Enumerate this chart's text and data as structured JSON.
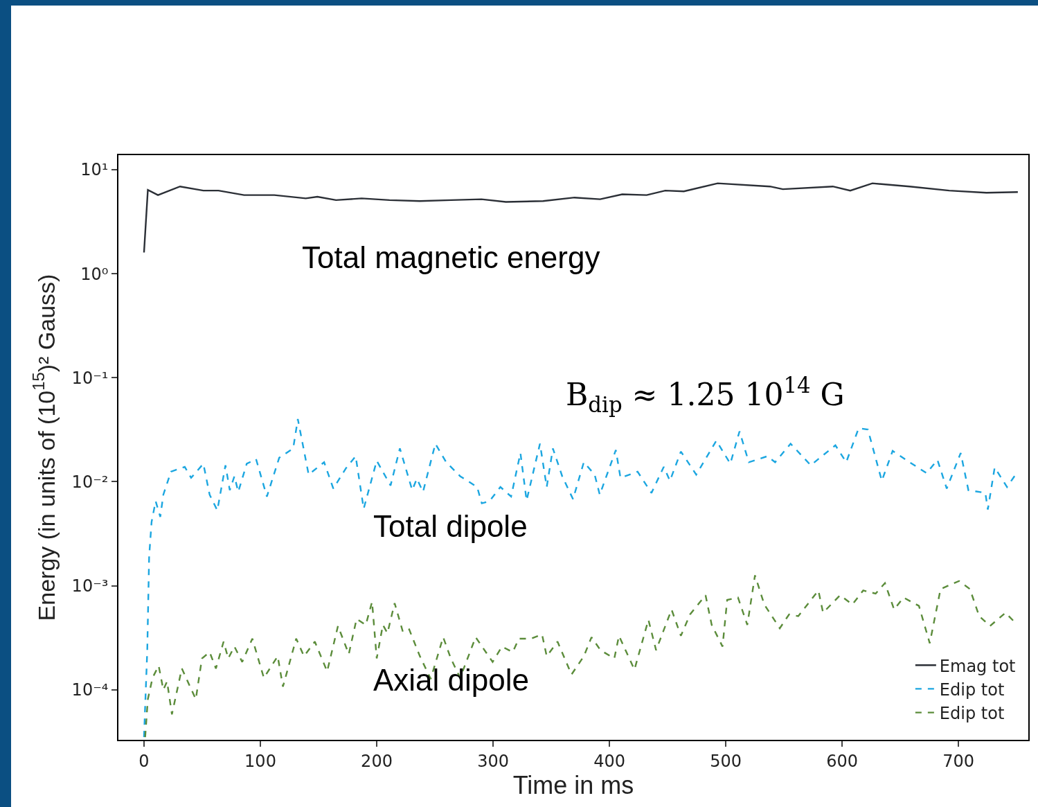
{
  "chart_data": {
    "type": "line",
    "xlabel": "Time in ms",
    "ylabel": "Energy (in units of (10$^{15}$)² Gauss)",
    "log": "y",
    "grid": false,
    "legend": "bottom right",
    "marker": "none",
    "xlim": [
      -22,
      760
    ],
    "xticks": [
      0,
      100,
      200,
      300,
      400,
      500,
      600,
      700
    ],
    "ylim": [
      3.3e-05,
      13.8
    ],
    "yticks": [
      {
        "value": 10,
        "label": "10¹"
      },
      {
        "value": 1,
        "label": "10⁰"
      },
      {
        "value": 0.1,
        "label": "10⁻¹"
      },
      {
        "value": 0.01,
        "label": "10⁻²"
      },
      {
        "value": 0.001,
        "label": "10⁻³"
      },
      {
        "value": 0.0001,
        "label": "10⁻⁴"
      }
    ],
    "series": [
      {
        "name": "Emag tot",
        "color": "#2b2f36",
        "line_style": "solid",
        "x": [
          0,
          3.3,
          12,
          31,
          51,
          64,
          86,
          112,
          139,
          149,
          165,
          187,
          211,
          237,
          264,
          290,
          311,
          343,
          370,
          392,
          411,
          432,
          448,
          464,
          493,
          538,
          549,
          592,
          607,
          626,
          658,
          692,
          724,
          751
        ],
        "values": [
          1.6,
          6.4,
          5.7,
          6.9,
          6.3,
          6.3,
          5.7,
          5.7,
          5.3,
          5.5,
          5.1,
          5.3,
          5.1,
          5.0,
          5.1,
          5.2,
          4.9,
          5.0,
          5.4,
          5.2,
          5.8,
          5.7,
          6.3,
          6.2,
          7.4,
          6.9,
          6.5,
          6.9,
          6.3,
          7.4,
          6.9,
          6.3,
          6.0,
          6.1
        ]
      },
      {
        "name": "Edip tot",
        "color": "#1ba6e0",
        "line_style": "dashed",
        "x": [
          0,
          2.8,
          4.4,
          6.5,
          10,
          14,
          16.6,
          23.2,
          35,
          40.5,
          51,
          56.4,
          63,
          70,
          73.7,
          77.7,
          81,
          88.3,
          96.3,
          105.6,
          116.2,
          128.2,
          132.2,
          141.5,
          154.8,
          162.7,
          173.4,
          181.9,
          188.8,
          200,
          211.9,
          219.9,
          230.5,
          234.5,
          239.8,
          250.4,
          259.7,
          271.7,
          286.3,
          290.3,
          296.9,
          306.3,
          315.5,
          323.5,
          328.8,
          340.3,
          346.1,
          351.4,
          359.4,
          368.7,
          378,
          387.3,
          391.7,
          405.5,
          409.5,
          424.2,
          436.1,
          446.7,
          452,
          461.4,
          474.6,
          491.9,
          503.9,
          511.8,
          519.8,
          535.8,
          542.4,
          555.7,
          573,
          594.2,
          603.5,
          614.2,
          622.1,
          634.1,
          643.4,
          658,
          672.6,
          681.9,
          689.9,
          701.9,
          708.5,
          723.1,
          725.2,
          731.1,
          741.7,
          749.7
        ],
        "values": [
          3.5e-05,
          0.00024,
          0.0019,
          0.0041,
          0.0065,
          0.0046,
          0.0075,
          0.0125,
          0.0139,
          0.0109,
          0.0149,
          0.0075,
          0.0053,
          0.0144,
          0.0083,
          0.0113,
          0.008,
          0.0149,
          0.0165,
          0.0072,
          0.017,
          0.0209,
          0.04,
          0.0117,
          0.0154,
          0.0086,
          0.0134,
          0.0176,
          0.0055,
          0.0159,
          0.0092,
          0.0209,
          0.0083,
          0.0107,
          0.008,
          0.0232,
          0.0154,
          0.0113,
          0.0089,
          0.0062,
          0.0065,
          0.0089,
          0.0072,
          0.0189,
          0.0066,
          0.0232,
          0.0089,
          0.0209,
          0.0113,
          0.0068,
          0.0154,
          0.0117,
          0.0075,
          0.0202,
          0.0109,
          0.0125,
          0.0078,
          0.0139,
          0.0102,
          0.0195,
          0.0117,
          0.0248,
          0.0149,
          0.0305,
          0.0154,
          0.0176,
          0.0154,
          0.0232,
          0.0144,
          0.0224,
          0.0154,
          0.0327,
          0.0318,
          0.0102,
          0.0198,
          0.0154,
          0.0121,
          0.0162,
          0.0086,
          0.0189,
          0.0083,
          0.0078,
          0.0054,
          0.0137,
          0.0089,
          0.012
        ]
      },
      {
        "name": "Edip tot",
        "color": "#5b8c3a",
        "line_style": "dashed",
        "x": [
          1,
          3.3,
          7.3,
          12.6,
          16.6,
          19.8,
          24,
          32.5,
          44.5,
          49.8,
          56.4,
          61.8,
          68.4,
          72.4,
          77.7,
          84.4,
          93.1,
          103,
          114.9,
          119.4,
          130.8,
          137.5,
          146.8,
          157.4,
          166.7,
          176,
          182.7,
          190.6,
          196,
          200,
          205.3,
          209.2,
          215.4,
          222.5,
          227.9,
          237.1,
          246.4,
          257.1,
          263.7,
          271.7,
          285,
          299.6,
          307.6,
          316.9,
          322.2,
          332.8,
          342.1,
          346.1,
          355.4,
          367.4,
          378,
          384.6,
          392.3,
          404.2,
          408.2,
          421.5,
          433.5,
          440.1,
          453.4,
          461.4,
          469.3,
          482.6,
          487.9,
          497.2,
          501.2,
          510.5,
          518.5,
          525.1,
          533.1,
          546.4,
          554.4,
          562.3,
          579.6,
          583.6,
          598.2,
          608.8,
          618.1,
          628.8,
          636.8,
          644.7,
          652.7,
          666,
          675.3,
          684.6,
          700.5,
          709.8,
          717.8,
          727.1,
          740.4,
          749.7
        ],
        "values": [
          3.5e-05,
          8.1e-05,
          0.00013,
          0.00017,
          0.0001,
          0.00012,
          5.8e-05,
          0.00016,
          8.1e-05,
          0.0002,
          0.00023,
          0.00016,
          0.00029,
          0.0002,
          0.00026,
          0.000185,
          0.00031,
          0.00013,
          0.00021,
          0.000107,
          0.00031,
          0.00021,
          0.00029,
          0.00015,
          0.00041,
          0.00022,
          0.00048,
          0.00042,
          0.0007,
          0.0002,
          0.00042,
          0.00035,
          0.00068,
          0.00036,
          0.00038,
          0.00021,
          0.000127,
          0.00032,
          0.0002,
          0.00013,
          0.00032,
          0.000185,
          0.00026,
          0.00023,
          0.00031,
          0.00031,
          0.00034,
          0.00021,
          0.00029,
          0.00014,
          0.00021,
          0.00032,
          0.00024,
          0.0002,
          0.00033,
          0.000156,
          0.00047,
          0.00024,
          0.00059,
          0.00033,
          0.00053,
          0.00081,
          0.00042,
          0.00026,
          0.00073,
          0.00077,
          0.00042,
          0.00126,
          0.00066,
          0.00039,
          0.00053,
          0.00051,
          0.0009,
          0.00055,
          0.00081,
          0.00066,
          0.0009,
          0.00084,
          0.00106,
          0.00059,
          0.00077,
          0.00064,
          0.00028,
          0.00093,
          0.00111,
          0.00093,
          0.00051,
          0.00041,
          0.00055,
          0.00043
        ]
      }
    ],
    "annotations": [
      "Total magnetic energy",
      "Total dipole",
      "Axial dipole",
      "B$_{dip}$ ≈ 1.25 10$^{14}$ G"
    ]
  }
}
